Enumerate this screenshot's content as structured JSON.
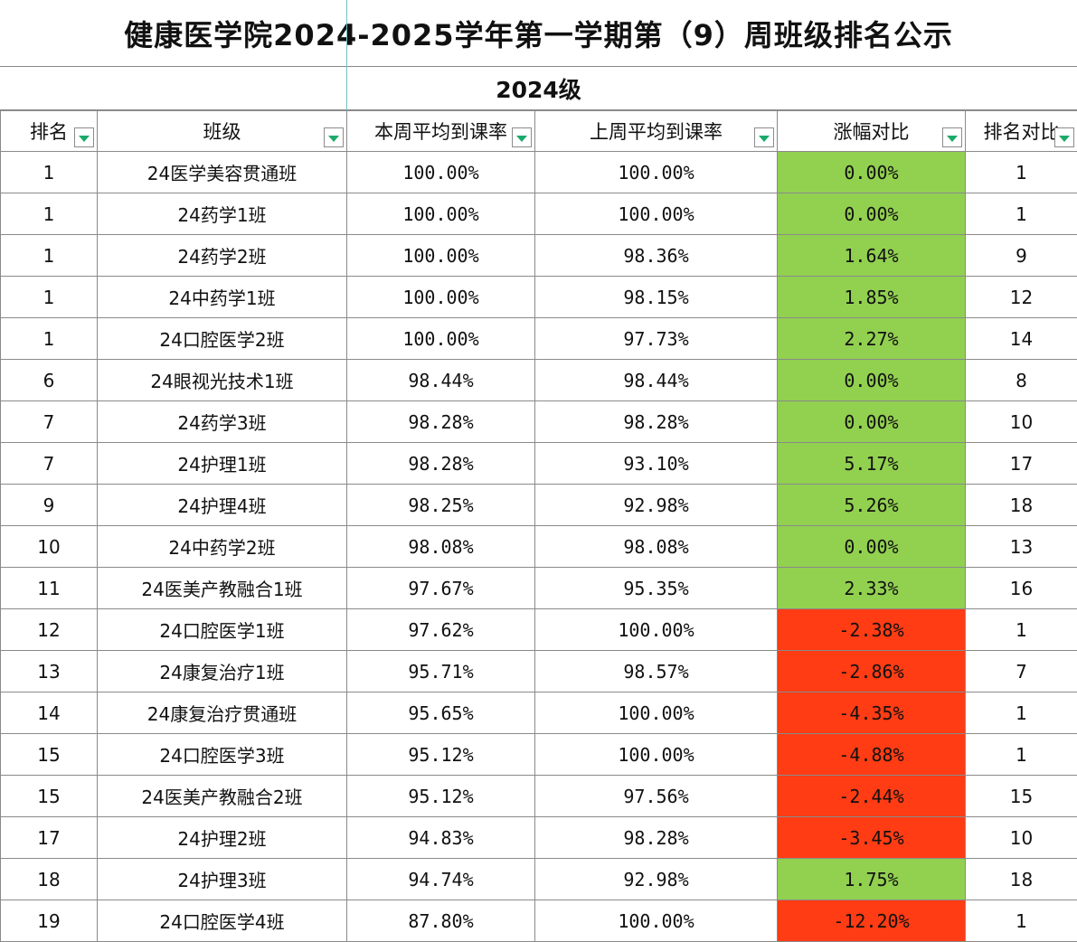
{
  "title": "健康医学院2024-2025学年第一学期第（9）周班级排名公示",
  "subtitle": "2024级",
  "colors": {
    "increase": "#92d050",
    "decrease": "#ff3c14",
    "filter_arrow": "#1aaa6a"
  },
  "columns": [
    "排名",
    "班级",
    "本周平均到课率",
    "上周平均到课率",
    "涨幅对比",
    "排名对比"
  ],
  "rows": [
    {
      "rank": "1",
      "cls": "24医学美容贯通班",
      "cur": "100.00%",
      "prev": "100.00%",
      "chg": "0.00%",
      "trend": "up",
      "prank": "1"
    },
    {
      "rank": "1",
      "cls": "24药学1班",
      "cur": "100.00%",
      "prev": "100.00%",
      "chg": "0.00%",
      "trend": "up",
      "prank": "1"
    },
    {
      "rank": "1",
      "cls": "24药学2班",
      "cur": "100.00%",
      "prev": "98.36%",
      "chg": "1.64%",
      "trend": "up",
      "prank": "9"
    },
    {
      "rank": "1",
      "cls": "24中药学1班",
      "cur": "100.00%",
      "prev": "98.15%",
      "chg": "1.85%",
      "trend": "up",
      "prank": "12"
    },
    {
      "rank": "1",
      "cls": "24口腔医学2班",
      "cur": "100.00%",
      "prev": "97.73%",
      "chg": "2.27%",
      "trend": "up",
      "prank": "14"
    },
    {
      "rank": "6",
      "cls": "24眼视光技术1班",
      "cur": "98.44%",
      "prev": "98.44%",
      "chg": "0.00%",
      "trend": "up",
      "prank": "8"
    },
    {
      "rank": "7",
      "cls": "24药学3班",
      "cur": "98.28%",
      "prev": "98.28%",
      "chg": "0.00%",
      "trend": "up",
      "prank": "10"
    },
    {
      "rank": "7",
      "cls": "24护理1班",
      "cur": "98.28%",
      "prev": "93.10%",
      "chg": "5.17%",
      "trend": "up",
      "prank": "17"
    },
    {
      "rank": "9",
      "cls": "24护理4班",
      "cur": "98.25%",
      "prev": "92.98%",
      "chg": "5.26%",
      "trend": "up",
      "prank": "18"
    },
    {
      "rank": "10",
      "cls": "24中药学2班",
      "cur": "98.08%",
      "prev": "98.08%",
      "chg": "0.00%",
      "trend": "up",
      "prank": "13"
    },
    {
      "rank": "11",
      "cls": "24医美产教融合1班",
      "cur": "97.67%",
      "prev": "95.35%",
      "chg": "2.33%",
      "trend": "up",
      "prank": "16"
    },
    {
      "rank": "12",
      "cls": "24口腔医学1班",
      "cur": "97.62%",
      "prev": "100.00%",
      "chg": "-2.38%",
      "trend": "down",
      "prank": "1"
    },
    {
      "rank": "13",
      "cls": "24康复治疗1班",
      "cur": "95.71%",
      "prev": "98.57%",
      "chg": "-2.86%",
      "trend": "down",
      "prank": "7"
    },
    {
      "rank": "14",
      "cls": "24康复治疗贯通班",
      "cur": "95.65%",
      "prev": "100.00%",
      "chg": "-4.35%",
      "trend": "down",
      "prank": "1"
    },
    {
      "rank": "15",
      "cls": "24口腔医学3班",
      "cur": "95.12%",
      "prev": "100.00%",
      "chg": "-4.88%",
      "trend": "down",
      "prank": "1"
    },
    {
      "rank": "15",
      "cls": "24医美产教融合2班",
      "cur": "95.12%",
      "prev": "97.56%",
      "chg": "-2.44%",
      "trend": "down",
      "prank": "15"
    },
    {
      "rank": "17",
      "cls": "24护理2班",
      "cur": "94.83%",
      "prev": "98.28%",
      "chg": "-3.45%",
      "trend": "down",
      "prank": "10"
    },
    {
      "rank": "18",
      "cls": "24护理3班",
      "cur": "94.74%",
      "prev": "92.98%",
      "chg": "1.75%",
      "trend": "up",
      "prank": "18"
    },
    {
      "rank": "19",
      "cls": "24口腔医学4班",
      "cur": "87.80%",
      "prev": "100.00%",
      "chg": "-12.20%",
      "trend": "down",
      "prank": "1"
    }
  ]
}
